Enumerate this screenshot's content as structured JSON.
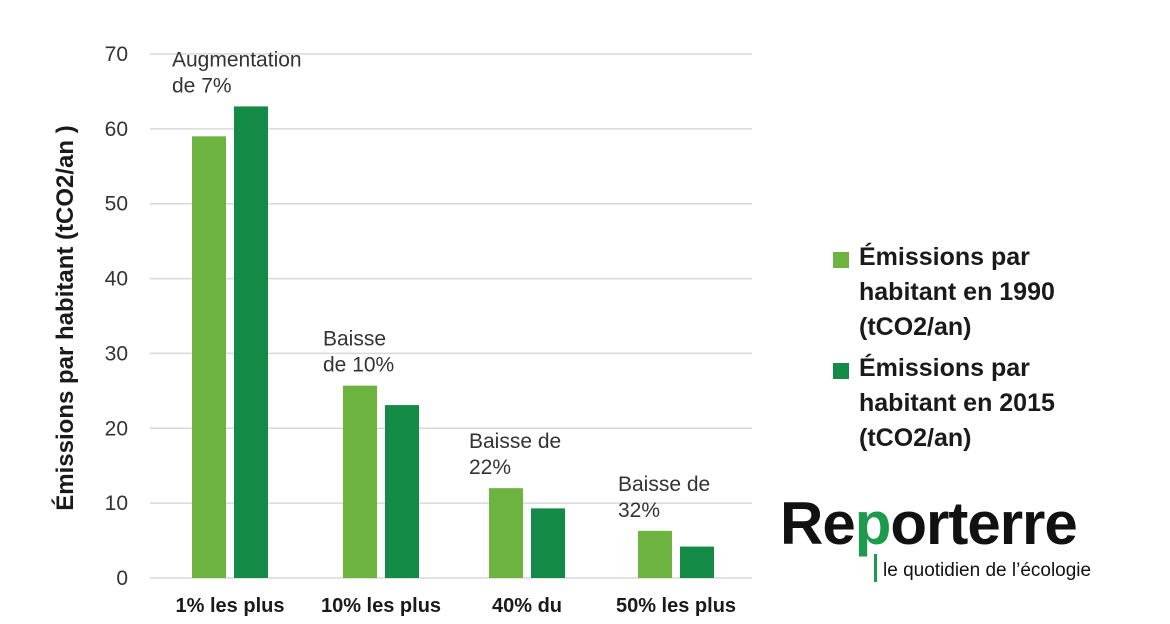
{
  "chart_data": {
    "type": "bar",
    "ylabel": "Émissions par habitant (tCO2/an )",
    "ylim": [
      0,
      70
    ],
    "yticks": [
      0,
      10,
      20,
      30,
      40,
      50,
      60,
      70
    ],
    "grid": true,
    "legend_position": "right",
    "categories": [
      "1% les plus",
      "10% les plus",
      "40% du",
      "50% les plus"
    ],
    "series": [
      {
        "name": "Émissions par habitant en 1990 (tCO2/an)",
        "color": "#6db33f",
        "values": [
          59,
          25.7,
          12,
          6.3
        ]
      },
      {
        "name": "Émissions par habitant en 2015 (tCO2/an)",
        "color": "#138a45",
        "values": [
          63,
          23.1,
          9.3,
          4.2
        ]
      }
    ],
    "annotations": [
      {
        "category": "1% les plus",
        "lines": [
          "Augmentation",
          "de 7%"
        ]
      },
      {
        "category": "10% les plus",
        "lines": [
          "Baisse",
          "de 10%"
        ]
      },
      {
        "category": "40% du",
        "lines": [
          "Baisse de",
          "22%"
        ]
      },
      {
        "category": "50% les plus",
        "lines": [
          "Baisse de",
          "32%"
        ]
      }
    ]
  },
  "legend": {
    "items": [
      {
        "label": "Émissions par\nhabitant en 1990\n(tCO2/an)",
        "color": "#6db33f"
      },
      {
        "label": "Émissions par\nhabitant en 2015\n(tCO2/an)",
        "color": "#138a45"
      }
    ]
  },
  "logo": {
    "word_start": "Re",
    "word_accent": "p",
    "word_end": "orterre",
    "tagline": "le quotidien de l’écologie"
  }
}
